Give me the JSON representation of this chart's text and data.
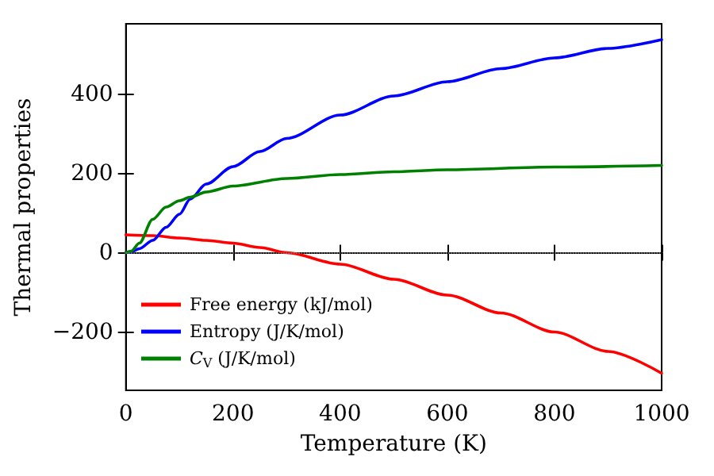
{
  "chart_data": {
    "type": "line",
    "xlabel": "Temperature (K)",
    "ylabel": "Thermal properties",
    "xlim": [
      0,
      1000
    ],
    "xticks": [
      0,
      200,
      400,
      600,
      800,
      1000
    ],
    "ylim": [
      -347,
      577
    ],
    "yticks": [
      {
        "value": -200,
        "label": "−200"
      },
      0,
      200,
      400
    ],
    "grid": false,
    "legend": "bottom left",
    "marker": "none",
    "line_style": "solid",
    "ref_lines": [
      {
        "axis": "y",
        "value": 0,
        "label": null,
        "color": "#808080",
        "line_style": "dotted"
      }
    ],
    "series": [
      {
        "name": "Free energy (kJ/mol)",
        "color": "#ff0000",
        "x": [
          0,
          50,
          100,
          150,
          200,
          250,
          300,
          400,
          500,
          600,
          700,
          800,
          900,
          1000
        ],
        "values": [
          45,
          43,
          37,
          31,
          24,
          13,
          0,
          -29,
          -67,
          -107,
          -152,
          -200,
          -249,
          -304
        ]
      },
      {
        "name": "Entropy (J/K/mol)",
        "color": "#0000ff",
        "x": [
          0,
          10,
          25,
          50,
          75,
          100,
          120,
          150,
          200,
          250,
          300,
          400,
          500,
          600,
          700,
          800,
          900,
          1000
        ],
        "values": [
          0,
          2,
          10,
          31,
          64,
          97,
          135,
          173,
          217,
          255,
          288,
          347,
          395,
          431,
          464,
          491,
          515,
          537
        ]
      },
      {
        "name": "C$_{V}$ (J/K/mol)",
        "color": "#008000",
        "x": [
          0,
          10,
          25,
          50,
          75,
          100,
          120,
          150,
          200,
          300,
          400,
          500,
          600,
          800,
          1000
        ],
        "values": [
          0,
          4,
          24,
          84,
          115,
          131,
          140,
          153,
          168,
          187,
          197,
          204,
          209,
          216,
          220
        ]
      }
    ]
  }
}
